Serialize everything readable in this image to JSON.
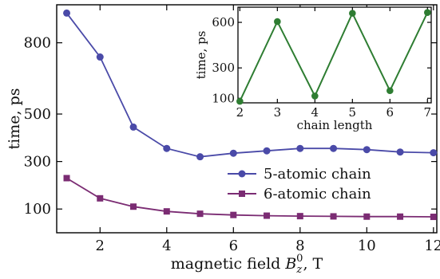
{
  "chart_data": [
    {
      "type": "line",
      "xlabel_main": "magnetic field ",
      "xlabel_symbol": "B",
      "xlabel_sub": "z",
      "xlabel_sup": "0",
      "xlabel_unit": ", T",
      "ylabel": "time, ps",
      "xlim": [
        0.7,
        12.1
      ],
      "ylim": [
        0,
        960
      ],
      "x_ticks": [
        2,
        4,
        6,
        8,
        10,
        12
      ],
      "y_ticks": [
        100,
        300,
        500,
        800
      ],
      "grid": false,
      "legend_position": "center-right",
      "series": [
        {
          "name": "5-atomic chain",
          "marker": "circle",
          "color": "#4a4aa8",
          "x": [
            1,
            2,
            3,
            4,
            5,
            6,
            7,
            8,
            9,
            10,
            11,
            12
          ],
          "y": [
            925,
            740,
            445,
            355,
            320,
            335,
            345,
            355,
            355,
            350,
            340,
            337
          ]
        },
        {
          "name": "6-atomic chain",
          "marker": "square",
          "color": "#7b2c73",
          "x": [
            1,
            2,
            3,
            4,
            5,
            6,
            7,
            8,
            9,
            10,
            11,
            12
          ],
          "y": [
            230,
            145,
            110,
            90,
            80,
            75,
            72,
            70,
            69,
            68,
            68,
            67
          ]
        }
      ]
    },
    {
      "type": "line",
      "xlabel": "chain length",
      "ylabel": "time, ps",
      "xlim": [
        1.95,
        7.1
      ],
      "ylim": [
        70,
        700
      ],
      "x_ticks": [
        2,
        3,
        4,
        5,
        6,
        7
      ],
      "y_ticks": [
        100,
        300,
        600
      ],
      "grid": false,
      "series": [
        {
          "marker": "circle",
          "color": "#2e7d32",
          "x": [
            2,
            3,
            4,
            5,
            6,
            7
          ],
          "y": [
            80,
            605,
            115,
            660,
            150,
            665
          ]
        }
      ]
    }
  ]
}
